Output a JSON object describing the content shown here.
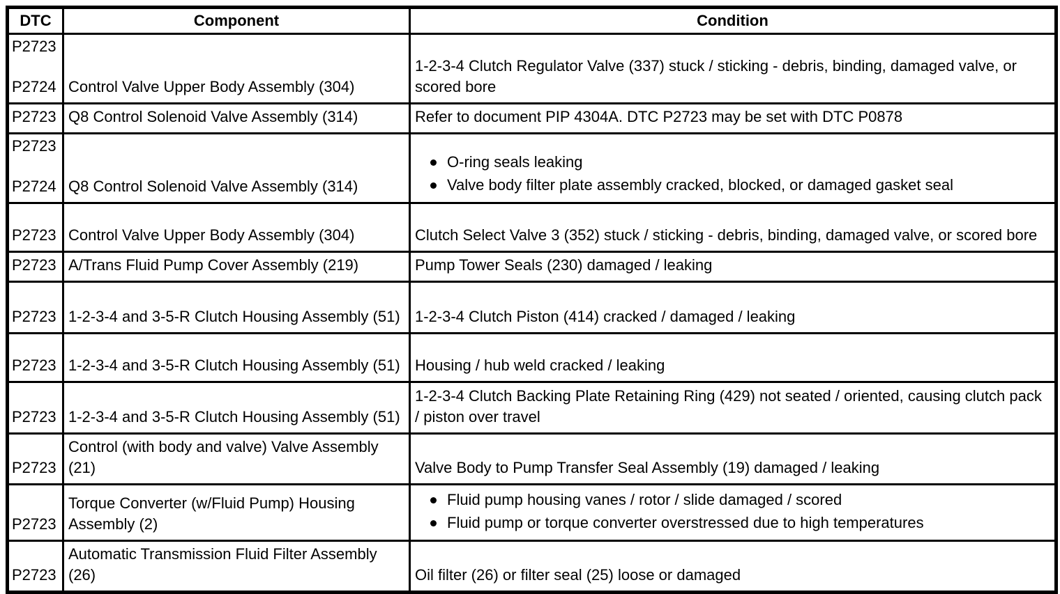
{
  "table": {
    "headers": [
      "DTC",
      "Component",
      "Condition"
    ],
    "rows": [
      {
        "dtc": [
          "P2723",
          "P2724"
        ],
        "component": "Control Valve Upper Body Assembly (304)",
        "condition": "1-2-3-4 Clutch Regulator Valve (337) stuck / sticking - debris, binding, damaged valve, or scored bore"
      },
      {
        "dtc": [
          "P2723"
        ],
        "component": "Q8 Control Solenoid Valve Assembly (314)",
        "condition": "Refer to document PIP 4304A. DTC P2723 may be set with DTC P0878"
      },
      {
        "dtc": [
          "P2723",
          "P2724"
        ],
        "component": "Q8 Control Solenoid Valve Assembly (314)",
        "condition_bullets": [
          "O-ring seals leaking",
          "Valve body filter plate assembly cracked, blocked, or damaged gasket seal"
        ]
      },
      {
        "dtc": [
          "P2723"
        ],
        "component": "Control Valve Upper Body Assembly (304)",
        "condition": "Clutch Select Valve 3 (352) stuck / sticking - debris, binding, damaged valve, or scored bore"
      },
      {
        "dtc": [
          "P2723"
        ],
        "component": "A/Trans Fluid Pump Cover Assembly (219)",
        "condition": "Pump Tower Seals (230) damaged / leaking"
      },
      {
        "dtc": [
          "P2723"
        ],
        "component": "1-2-3-4 and 3-5-R Clutch Housing Assembly (51)",
        "condition": "1-2-3-4 Clutch Piston (414) cracked / damaged / leaking"
      },
      {
        "dtc": [
          "P2723"
        ],
        "component": "1-2-3-4 and 3-5-R Clutch Housing Assembly (51)",
        "condition": "Housing / hub weld cracked / leaking"
      },
      {
        "dtc": [
          "P2723"
        ],
        "component": "1-2-3-4 and 3-5-R Clutch Housing Assembly (51)",
        "condition": "1-2-3-4 Clutch Backing Plate Retaining Ring (429) not seated / oriented, causing clutch pack / piston over travel"
      },
      {
        "dtc": [
          "P2723"
        ],
        "component": "Control (with body and valve) Valve Assembly (21)",
        "condition": "Valve Body to Pump Transfer Seal Assembly (19) damaged / leaking"
      },
      {
        "dtc": [
          "P2723"
        ],
        "component": "Torque Converter (w/Fluid Pump) Housing Assembly (2)",
        "condition_bullets": [
          "Fluid pump housing vanes / rotor / slide damaged / scored",
          "Fluid pump or torque converter overstressed due to high temperatures"
        ]
      },
      {
        "dtc": [
          "P2723"
        ],
        "component": "Automatic Transmission Fluid Filter Assembly (26)",
        "condition": "Oil filter (26) or filter seal (25) loose or damaged"
      }
    ]
  }
}
